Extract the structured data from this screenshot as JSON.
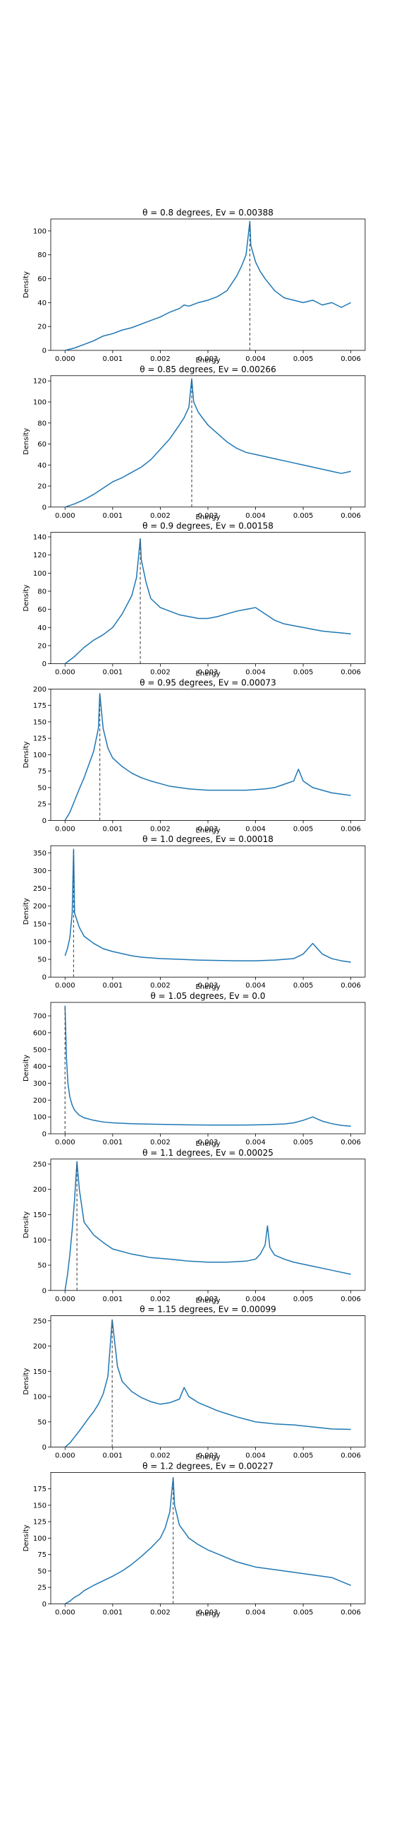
{
  "chart_data": [
    {
      "type": "line",
      "title": "θ = 0.8 degrees, Ev =  0.00388",
      "xlabel": "Energy",
      "ylabel": "Density",
      "xlim": [
        -0.0003,
        0.0063
      ],
      "ylim": [
        0,
        110
      ],
      "yticks": [
        0,
        20,
        40,
        60,
        80,
        100
      ],
      "xticks": [
        "0.000",
        "0.001",
        "0.002",
        "0.003",
        "0.004",
        "0.005",
        "0.006"
      ],
      "peak_x": 0.00388,
      "peak_y": 108,
      "series": [
        {
          "x": [
            0,
            0.0002,
            0.0004,
            0.0006,
            0.0008,
            0.001,
            0.0012,
            0.0014,
            0.0016,
            0.0018,
            0.002,
            0.0022,
            0.0024,
            0.0025,
            0.0026,
            0.0028,
            0.003,
            0.0032,
            0.0034,
            0.0035,
            0.0036,
            0.0037,
            0.0038,
            0.00388,
            0.0039,
            0.004,
            0.0041,
            0.0042,
            0.0044,
            0.0046,
            0.0048,
            0.005,
            0.0052,
            0.0054,
            0.0056,
            0.0058,
            0.006
          ],
          "y": [
            0,
            2,
            5,
            8,
            12,
            14,
            17,
            19,
            22,
            25,
            28,
            32,
            35,
            38,
            37,
            40,
            42,
            45,
            50,
            56,
            62,
            70,
            80,
            108,
            88,
            74,
            66,
            60,
            50,
            44,
            42,
            40,
            42,
            38,
            40,
            36,
            40
          ]
        }
      ]
    },
    {
      "type": "line",
      "title": "θ = 0.85 degrees, Ev =  0.00266",
      "xlabel": "Energy",
      "ylabel": "Density",
      "xlim": [
        -0.0003,
        0.0063
      ],
      "ylim": [
        0,
        125
      ],
      "yticks": [
        0,
        20,
        40,
        60,
        80,
        100,
        120
      ],
      "xticks": [
        "0.000",
        "0.001",
        "0.002",
        "0.003",
        "0.004",
        "0.005",
        "0.006"
      ],
      "peak_x": 0.00266,
      "peak_y": 122,
      "series": [
        {
          "x": [
            0,
            0.0002,
            0.0004,
            0.0006,
            0.0008,
            0.001,
            0.0012,
            0.0014,
            0.0016,
            0.0018,
            0.002,
            0.0022,
            0.0024,
            0.0025,
            0.0026,
            0.00266,
            0.0027,
            0.0028,
            0.003,
            0.0032,
            0.0034,
            0.0036,
            0.0038,
            0.004,
            0.0042,
            0.0044,
            0.0046,
            0.0048,
            0.005,
            0.0052,
            0.0054,
            0.0056,
            0.0058,
            0.006
          ],
          "y": [
            0,
            3,
            7,
            12,
            18,
            24,
            28,
            33,
            38,
            45,
            55,
            65,
            78,
            85,
            95,
            122,
            100,
            90,
            78,
            70,
            62,
            56,
            52,
            50,
            48,
            46,
            44,
            42,
            40,
            38,
            36,
            34,
            32,
            34
          ]
        }
      ]
    },
    {
      "type": "line",
      "title": "θ = 0.9 degrees, Ev =  0.00158",
      "xlabel": "Energy",
      "ylabel": "Density",
      "xlim": [
        -0.0003,
        0.0063
      ],
      "ylim": [
        0,
        145
      ],
      "yticks": [
        0,
        20,
        40,
        60,
        80,
        100,
        120,
        140
      ],
      "xticks": [
        "0.000",
        "0.001",
        "0.002",
        "0.003",
        "0.004",
        "0.005",
        "0.006"
      ],
      "peak_x": 0.00158,
      "peak_y": 138,
      "series": [
        {
          "x": [
            0,
            0.0002,
            0.0004,
            0.0006,
            0.0008,
            0.001,
            0.0012,
            0.0014,
            0.0015,
            0.00158,
            0.0016,
            0.0017,
            0.0018,
            0.002,
            0.0022,
            0.0024,
            0.0026,
            0.0028,
            0.003,
            0.0032,
            0.0034,
            0.0036,
            0.0038,
            0.004,
            0.0042,
            0.0044,
            0.0046,
            0.0048,
            0.005,
            0.0052,
            0.0054,
            0.0056,
            0.0058,
            0.006
          ],
          "y": [
            0,
            8,
            18,
            26,
            32,
            40,
            55,
            75,
            95,
            138,
            115,
            90,
            72,
            62,
            58,
            54,
            52,
            50,
            50,
            52,
            55,
            58,
            60,
            62,
            55,
            48,
            44,
            42,
            40,
            38,
            36,
            35,
            34,
            33
          ]
        }
      ]
    },
    {
      "type": "line",
      "title": "θ = 0.95 degrees, Ev =  0.00073",
      "xlabel": "Energy",
      "ylabel": "Density",
      "xlim": [
        -0.0003,
        0.0063
      ],
      "ylim": [
        0,
        200
      ],
      "yticks": [
        0,
        25,
        50,
        75,
        100,
        125,
        150,
        175,
        200
      ],
      "xticks": [
        "0.000",
        "0.001",
        "0.002",
        "0.003",
        "0.004",
        "0.005",
        "0.006"
      ],
      "peak_x": 0.00073,
      "peak_y": 193,
      "series": [
        {
          "x": [
            0,
            0.0001,
            0.0002,
            0.0003,
            0.0004,
            0.0005,
            0.0006,
            0.0007,
            0.00073,
            0.0008,
            0.0009,
            0.001,
            0.0012,
            0.0014,
            0.0016,
            0.0018,
            0.002,
            0.0022,
            0.0024,
            0.0026,
            0.0028,
            0.003,
            0.0032,
            0.0034,
            0.0036,
            0.0038,
            0.004,
            0.0042,
            0.0044,
            0.0046,
            0.0048,
            0.0049,
            0.005,
            0.0052,
            0.0054,
            0.0056,
            0.0058,
            0.006
          ],
          "y": [
            0,
            12,
            30,
            48,
            65,
            85,
            105,
            140,
            193,
            140,
            110,
            95,
            82,
            72,
            65,
            60,
            56,
            52,
            50,
            48,
            47,
            46,
            46,
            46,
            46,
            46,
            47,
            48,
            50,
            55,
            60,
            78,
            60,
            50,
            46,
            42,
            40,
            38
          ]
        }
      ]
    },
    {
      "type": "line",
      "title": "θ = 1.0 degrees, Ev =  0.00018",
      "xlabel": "Energy",
      "ylabel": "Density",
      "xlim": [
        -0.0003,
        0.0063
      ],
      "ylim": [
        0,
        370
      ],
      "yticks": [
        0,
        50,
        100,
        150,
        200,
        250,
        300,
        350
      ],
      "xticks": [
        "0.000",
        "0.001",
        "0.002",
        "0.003",
        "0.004",
        "0.005",
        "0.006"
      ],
      "peak_x": 0.00018,
      "peak_y": 360,
      "series": [
        {
          "x": [
            0,
            5e-05,
            0.0001,
            0.00015,
            0.00018,
            0.0002,
            0.0003,
            0.0004,
            0.0006,
            0.0008,
            0.001,
            0.0012,
            0.0014,
            0.0016,
            0.0018,
            0.002,
            0.0024,
            0.0028,
            0.0032,
            0.0036,
            0.004,
            0.0044,
            0.0048,
            0.005,
            0.0052,
            0.0054,
            0.0056,
            0.0058,
            0.006
          ],
          "y": [
            60,
            80,
            110,
            180,
            360,
            180,
            140,
            115,
            95,
            80,
            72,
            66,
            60,
            56,
            54,
            52,
            50,
            48,
            47,
            46,
            46,
            48,
            52,
            65,
            95,
            65,
            52,
            46,
            42
          ]
        }
      ]
    },
    {
      "type": "line",
      "title": "θ = 1.05 degrees, Ev =  0.0",
      "xlabel": "Energy",
      "ylabel": "Density",
      "xlim": [
        -0.0003,
        0.0063
      ],
      "ylim": [
        0,
        780
      ],
      "yticks": [
        0,
        100,
        200,
        300,
        400,
        500,
        600,
        700
      ],
      "xticks": [
        "0.000",
        "0.001",
        "0.002",
        "0.003",
        "0.004",
        "0.005",
        "0.006"
      ],
      "peak_x": 0.0,
      "peak_y": 760,
      "series": [
        {
          "x": [
            0,
            3e-05,
            6e-05,
            0.0001,
            0.00015,
            0.0002,
            0.0003,
            0.0004,
            0.0006,
            0.0008,
            0.001,
            0.0014,
            0.0018,
            0.0022,
            0.0026,
            0.003,
            0.0034,
            0.0038,
            0.0042,
            0.0046,
            0.0048,
            0.005,
            0.0052,
            0.0054,
            0.0056,
            0.0058,
            0.006
          ],
          "y": [
            760,
            450,
            300,
            220,
            170,
            140,
            110,
            95,
            80,
            70,
            65,
            60,
            57,
            55,
            53,
            52,
            52,
            52,
            54,
            58,
            65,
            80,
            100,
            75,
            60,
            50,
            45
          ]
        }
      ]
    },
    {
      "type": "line",
      "title": "θ = 1.1 degrees, Ev =  0.00025",
      "xlabel": "Energy",
      "ylabel": "Density",
      "xlim": [
        -0.0003,
        0.0063
      ],
      "ylim": [
        0,
        260
      ],
      "yticks": [
        0,
        50,
        100,
        150,
        200,
        250
      ],
      "xticks": [
        "0.000",
        "0.001",
        "0.002",
        "0.003",
        "0.004",
        "0.005",
        "0.006"
      ],
      "peak_x": 0.00025,
      "peak_y": 255,
      "series": [
        {
          "x": [
            0,
            5e-05,
            0.0001,
            0.00015,
            0.0002,
            0.00025,
            0.0003,
            0.0004,
            0.0006,
            0.0008,
            0.001,
            0.0014,
            0.0018,
            0.0022,
            0.0026,
            0.003,
            0.0034,
            0.0038,
            0.004,
            0.0041,
            0.0042,
            0.00425,
            0.0043,
            0.0044,
            0.0046,
            0.0048,
            0.005,
            0.0052,
            0.0054,
            0.0056,
            0.0058,
            0.006
          ],
          "y": [
            0,
            30,
            70,
            120,
            180,
            255,
            200,
            135,
            110,
            95,
            82,
            72,
            65,
            62,
            58,
            56,
            56,
            58,
            62,
            72,
            90,
            128,
            85,
            70,
            62,
            56,
            52,
            48,
            44,
            40,
            36,
            32
          ]
        }
      ]
    },
    {
      "type": "line",
      "title": "θ = 1.15 degrees, Ev =  0.00099",
      "xlabel": "Energy",
      "ylabel": "Density",
      "xlim": [
        -0.0003,
        0.0063
      ],
      "ylim": [
        0,
        260
      ],
      "yticks": [
        0,
        50,
        100,
        150,
        200,
        250
      ],
      "xticks": [
        "0.000",
        "0.001",
        "0.002",
        "0.003",
        "0.004",
        "0.005",
        "0.006"
      ],
      "peak_x": 0.00099,
      "peak_y": 252,
      "series": [
        {
          "x": [
            0,
            0.0001,
            0.0002,
            0.0003,
            0.0004,
            0.0005,
            0.0006,
            0.0007,
            0.0008,
            0.0009,
            0.00099,
            0.0011,
            0.0012,
            0.0014,
            0.0016,
            0.0018,
            0.002,
            0.0022,
            0.0024,
            0.0025,
            0.0026,
            0.0028,
            0.003,
            0.0032,
            0.0034,
            0.0036,
            0.0038,
            0.004,
            0.0044,
            0.0048,
            0.0052,
            0.0056,
            0.006
          ],
          "y": [
            0,
            8,
            20,
            32,
            45,
            58,
            70,
            85,
            105,
            140,
            252,
            160,
            130,
            110,
            98,
            90,
            85,
            88,
            95,
            118,
            100,
            88,
            80,
            72,
            66,
            60,
            55,
            50,
            46,
            44,
            40,
            36,
            35
          ]
        }
      ]
    },
    {
      "type": "line",
      "title": "θ = 1.2 degrees, Ev =  0.00227",
      "xlabel": "Energy",
      "ylabel": "Density",
      "xlim": [
        -0.0003,
        0.0063
      ],
      "ylim": [
        0,
        200
      ],
      "yticks": [
        0,
        25,
        50,
        75,
        100,
        125,
        150,
        175
      ],
      "xticks": [
        "0.000",
        "0.001",
        "0.002",
        "0.003",
        "0.004",
        "0.005",
        "0.006"
      ],
      "peak_x": 0.00227,
      "peak_y": 192,
      "series": [
        {
          "x": [
            0,
            0.0001,
            0.0002,
            0.0003,
            0.0004,
            0.0006,
            0.0008,
            0.001,
            0.0012,
            0.0014,
            0.0016,
            0.0018,
            0.002,
            0.0021,
            0.0022,
            0.00227,
            0.0023,
            0.0024,
            0.0026,
            0.0028,
            0.003,
            0.0032,
            0.0034,
            0.0036,
            0.0038,
            0.004,
            0.0044,
            0.0048,
            0.0052,
            0.0056,
            0.006
          ],
          "y": [
            0,
            4,
            10,
            14,
            20,
            28,
            35,
            42,
            50,
            60,
            72,
            85,
            100,
            115,
            140,
            192,
            150,
            120,
            100,
            90,
            82,
            76,
            70,
            64,
            60,
            56,
            52,
            48,
            44,
            40,
            28
          ]
        }
      ]
    }
  ]
}
